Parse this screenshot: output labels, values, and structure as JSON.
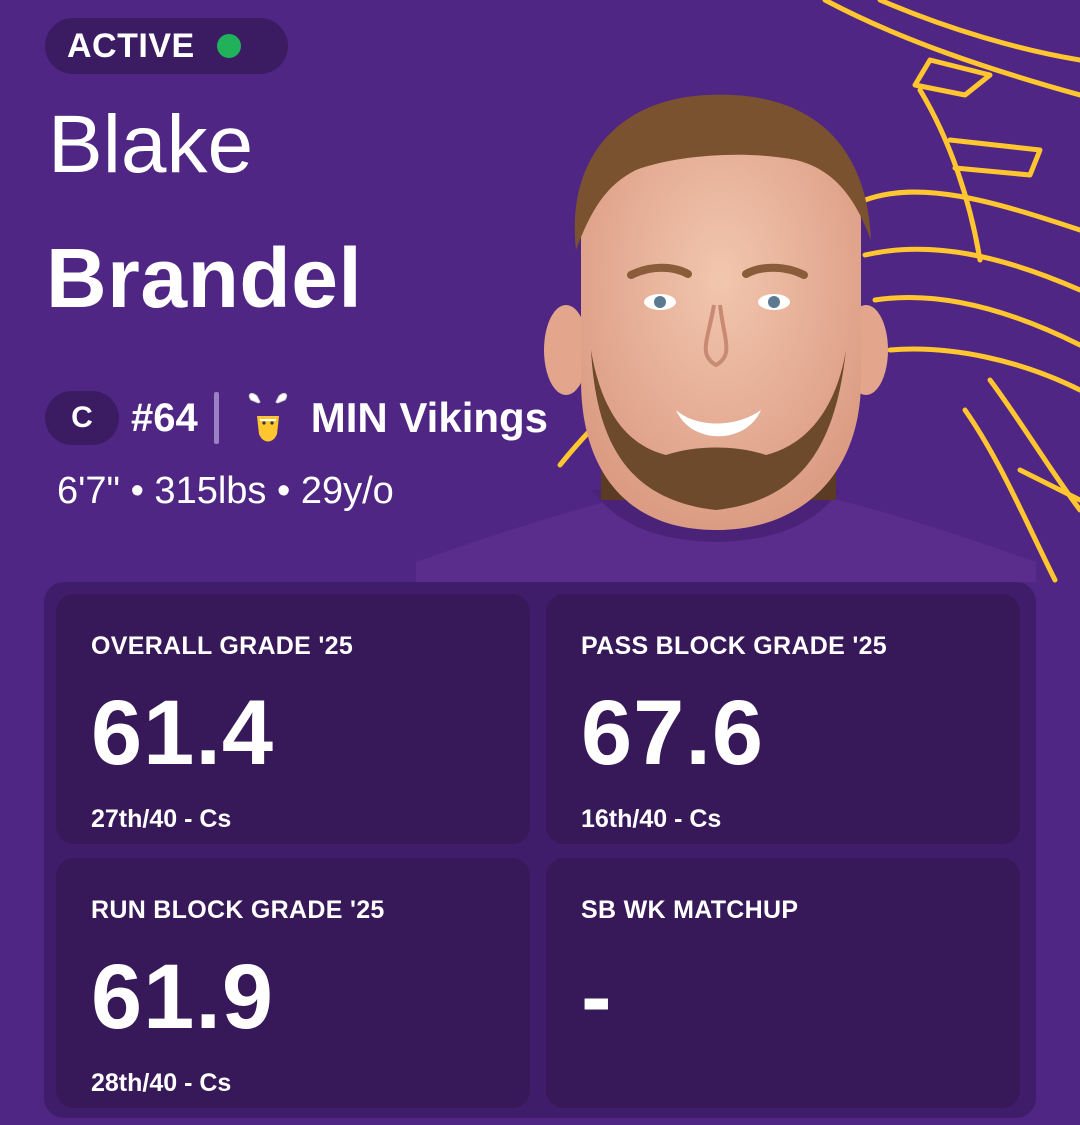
{
  "status": {
    "label": "ACTIVE",
    "color": "#20b15a"
  },
  "player": {
    "first_name": "Blake",
    "last_name": "Brandel",
    "position": "C",
    "jersey": "#64",
    "team": "MIN Vikings",
    "measurements": "6'7\" • 315lbs • 29y/o"
  },
  "icons": {
    "team_logo": "vikings-logo-icon",
    "background": "viking-helmet-outline"
  },
  "colors": {
    "background": "#4f2683",
    "accent": "#ffc62f",
    "card": "#371959"
  },
  "stats": [
    {
      "label": "OVERALL GRADE '25",
      "value": "61.4",
      "rank": "27th/40 - Cs"
    },
    {
      "label": "PASS BLOCK GRADE '25",
      "value": "67.6",
      "rank": "16th/40 - Cs"
    },
    {
      "label": "RUN BLOCK GRADE '25",
      "value": "61.9",
      "rank": "28th/40 - Cs"
    },
    {
      "label": "SB WK MATCHUP",
      "value": "-",
      "rank": ""
    }
  ]
}
